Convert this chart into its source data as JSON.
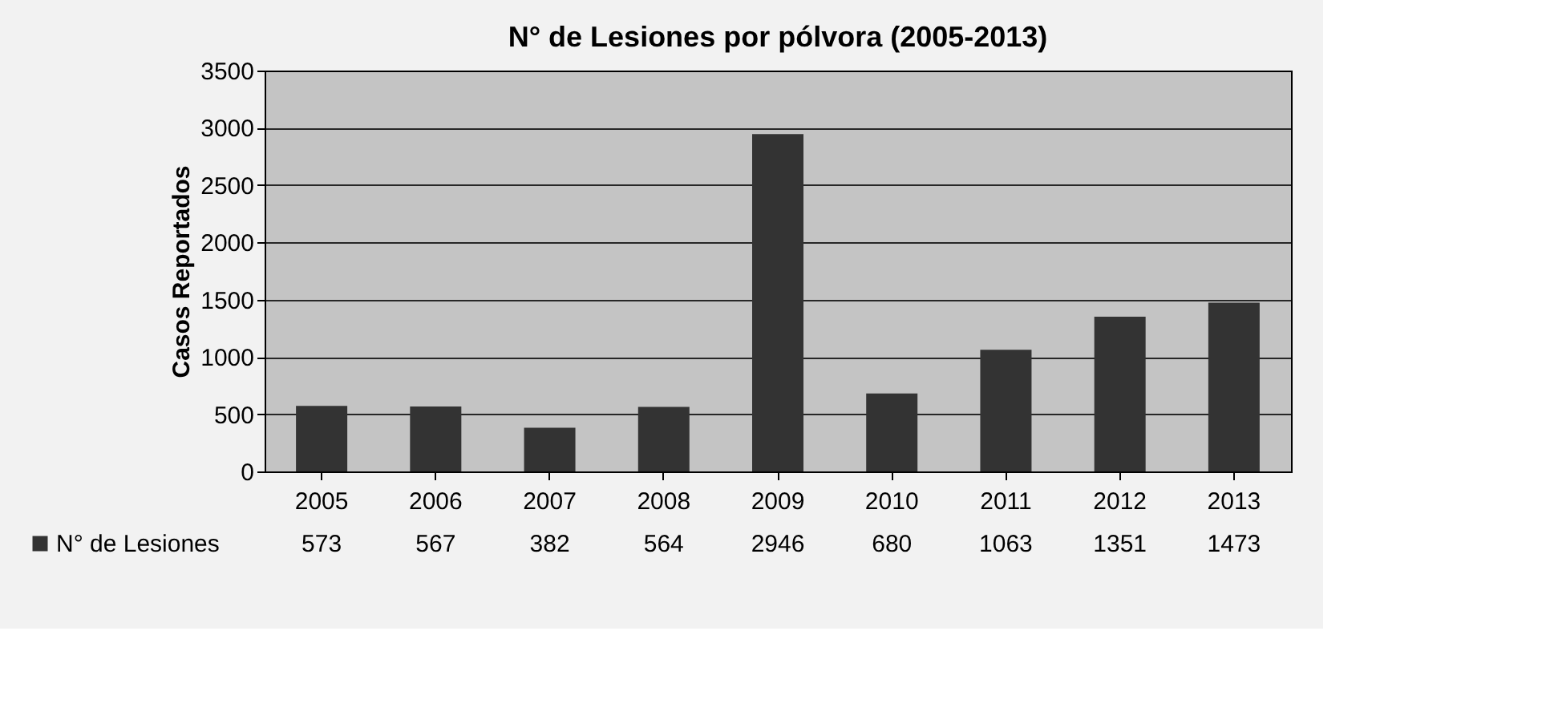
{
  "chart_data": {
    "type": "bar",
    "title": "N° de Lesiones por pólvora (2005-2013)",
    "ylabel": "Casos Reportados",
    "categories": [
      "2005",
      "2006",
      "2007",
      "2008",
      "2009",
      "2010",
      "2011",
      "2012",
      "2013"
    ],
    "series": [
      {
        "name": "N° de Lesiones",
        "color": "#333333",
        "values": [
          573,
          567,
          382,
          564,
          2946,
          680,
          1063,
          1351,
          1473
        ]
      }
    ],
    "ylim": [
      0,
      3500
    ],
    "yticks": [
      0,
      500,
      1000,
      1500,
      2000,
      2500,
      3000,
      3500
    ],
    "grid": "y",
    "data_labels": true,
    "legend": "bottom"
  }
}
